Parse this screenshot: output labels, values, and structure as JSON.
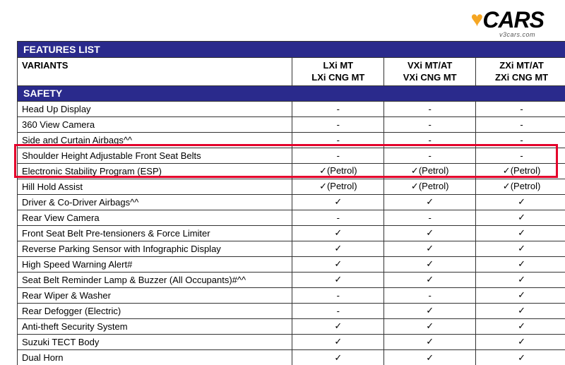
{
  "logo": {
    "text": "CARS",
    "sub": "v3cars.com"
  },
  "header": {
    "features_list": "FEATURES LIST",
    "variants_label": "VARIANTS",
    "safety": "SAFETY",
    "columns": [
      {
        "line1": "LXi MT",
        "line2": "LXi CNG MT"
      },
      {
        "line1": "VXi MT/AT",
        "line2": "VXi CNG MT"
      },
      {
        "line1": "ZXi MT/AT",
        "line2": "ZXi CNG MT"
      }
    ]
  },
  "rows": [
    {
      "name": "Head Up Display",
      "v": [
        "-",
        "-",
        "-"
      ]
    },
    {
      "name": "360 View Camera",
      "v": [
        "-",
        "-",
        "-"
      ]
    },
    {
      "name": "Side and Curtain Airbags^^",
      "v": [
        "-",
        "-",
        "-"
      ]
    },
    {
      "name": "Shoulder Height Adjustable Front Seat Belts",
      "v": [
        "-",
        "-",
        "-"
      ]
    },
    {
      "name": "Electronic Stability Program (ESP)",
      "v": [
        "✓(Petrol)",
        "✓(Petrol)",
        "✓(Petrol)"
      ]
    },
    {
      "name": "Hill Hold Assist",
      "v": [
        "✓(Petrol)",
        "✓(Petrol)",
        "✓(Petrol)"
      ]
    },
    {
      "name": "Driver & Co-Driver Airbags^^",
      "v": [
        "✓",
        "✓",
        "✓"
      ]
    },
    {
      "name": "Rear View Camera",
      "v": [
        "-",
        "-",
        "✓"
      ]
    },
    {
      "name": "Front Seat Belt Pre-tensioners & Force Limiter",
      "v": [
        "✓",
        "✓",
        "✓"
      ]
    },
    {
      "name": "Reverse Parking Sensor with Infographic Display",
      "v": [
        "✓",
        "✓",
        "✓"
      ]
    },
    {
      "name": "High Speed Warning Alert#",
      "v": [
        "✓",
        "✓",
        "✓"
      ]
    },
    {
      "name": "Seat Belt Reminder Lamp & Buzzer (All Occupants)#^^",
      "v": [
        "✓",
        "✓",
        "✓"
      ]
    },
    {
      "name": "Rear Wiper & Washer",
      "v": [
        "-",
        "-",
        "✓"
      ]
    },
    {
      "name": "Rear Defogger (Electric)",
      "v": [
        "-",
        "✓",
        "✓"
      ]
    },
    {
      "name": "Anti-theft Security System",
      "v": [
        "✓",
        "✓",
        "✓"
      ]
    },
    {
      "name": "Suzuki TECT Body",
      "v": [
        "✓",
        "✓",
        "✓"
      ]
    },
    {
      "name": "Dual Horn",
      "v": [
        "✓",
        "✓",
        "✓"
      ]
    }
  ],
  "highlight": {
    "border_color": "#e4002b"
  },
  "colors": {
    "header_bg": "#2a2a8c",
    "header_text": "#ffffff",
    "border": "#333333",
    "logo_accent": "#f5a623"
  }
}
